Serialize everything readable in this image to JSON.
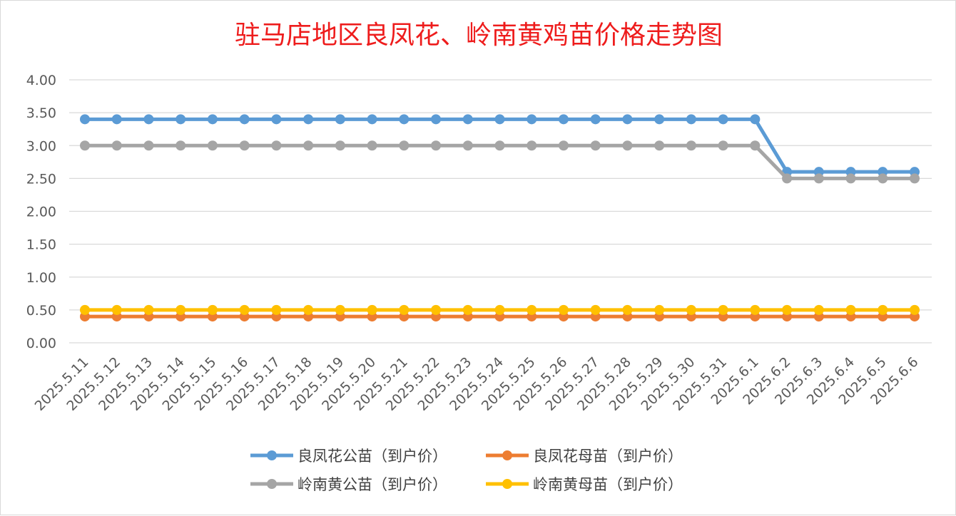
{
  "chart_data": {
    "type": "line",
    "title": "驻马店地区良凤花、岭南黄鸡苗价格走势图",
    "xlabel": "",
    "ylabel": "",
    "ylim": [
      0,
      4
    ],
    "y_ticks": [
      "0.00",
      "0.50",
      "1.00",
      "1.50",
      "2.00",
      "2.50",
      "3.00",
      "3.50",
      "4.00"
    ],
    "grid": true,
    "legend_position": "bottom",
    "categories": [
      "2025.5.11",
      "2025.5.12",
      "2025.5.13",
      "2025.5.14",
      "2025.5.15",
      "2025.5.16",
      "2025.5.17",
      "2025.5.18",
      "2025.5.19",
      "2025.5.20",
      "2025.5.21",
      "2025.5.22",
      "2025.5.23",
      "2025.5.24",
      "2025.5.25",
      "2025.5.26",
      "2025.5.27",
      "2025.5.28",
      "2025.5.29",
      "2025.5.30",
      "2025.5.31",
      "2025.6.1",
      "2025.6.2",
      "2025.6.3",
      "2025.6.4",
      "2025.6.5",
      "2025.6.6"
    ],
    "series": [
      {
        "name": "良凤花公苗（到户价）",
        "color": "#5b9bd5",
        "values": [
          3.4,
          3.4,
          3.4,
          3.4,
          3.4,
          3.4,
          3.4,
          3.4,
          3.4,
          3.4,
          3.4,
          3.4,
          3.4,
          3.4,
          3.4,
          3.4,
          3.4,
          3.4,
          3.4,
          3.4,
          3.4,
          3.4,
          2.6,
          2.6,
          2.6,
          2.6,
          2.6
        ]
      },
      {
        "name": "良凤花母苗（到户价）",
        "color": "#ed7d31",
        "values": [
          0.4,
          0.4,
          0.4,
          0.4,
          0.4,
          0.4,
          0.4,
          0.4,
          0.4,
          0.4,
          0.4,
          0.4,
          0.4,
          0.4,
          0.4,
          0.4,
          0.4,
          0.4,
          0.4,
          0.4,
          0.4,
          0.4,
          0.4,
          0.4,
          0.4,
          0.4,
          0.4
        ]
      },
      {
        "name": "岭南黄公苗（到户价）",
        "color": "#a5a5a5",
        "values": [
          3.0,
          3.0,
          3.0,
          3.0,
          3.0,
          3.0,
          3.0,
          3.0,
          3.0,
          3.0,
          3.0,
          3.0,
          3.0,
          3.0,
          3.0,
          3.0,
          3.0,
          3.0,
          3.0,
          3.0,
          3.0,
          3.0,
          2.5,
          2.5,
          2.5,
          2.5,
          2.5
        ]
      },
      {
        "name": "岭南黄母苗（到户价）",
        "color": "#ffc000",
        "values": [
          0.5,
          0.5,
          0.5,
          0.5,
          0.5,
          0.5,
          0.5,
          0.5,
          0.5,
          0.5,
          0.5,
          0.5,
          0.5,
          0.5,
          0.5,
          0.5,
          0.5,
          0.5,
          0.5,
          0.5,
          0.5,
          0.5,
          0.5,
          0.5,
          0.5,
          0.5,
          0.5
        ]
      }
    ]
  }
}
